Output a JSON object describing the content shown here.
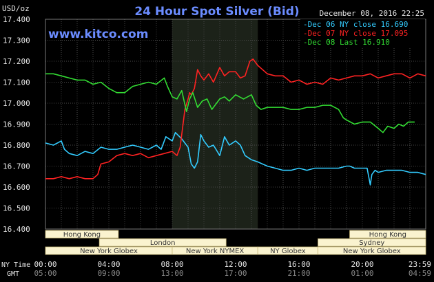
{
  "header": {
    "title": "24 Hour Spot Silver (Bid)",
    "timestamp": "December 08, 2016 22:25",
    "unit": "USD/oz",
    "website": "www.kitco.com"
  },
  "legend": [
    {
      "text": "Dec 06 NY close 16.690",
      "color": "#33ccff"
    },
    {
      "text": "Dec 07 NY close 17.095",
      "color": "#ff2222"
    },
    {
      "text": "Dec 08 Last 16.910",
      "color": "#33dd33"
    }
  ],
  "sessions": [
    {
      "name": "Hong Kong",
      "start": 0.0,
      "end": 4.6,
      "row": 0
    },
    {
      "name": "Hong Kong",
      "start": 19.2,
      "end": 24.0,
      "row": 0
    },
    {
      "name": "London",
      "start": 3.4,
      "end": 11.4,
      "row": 1
    },
    {
      "name": "Sydney",
      "start": 17.2,
      "end": 24.0,
      "row": 1
    },
    {
      "name": "New York Globex",
      "start": 0.0,
      "end": 8.0,
      "row": 2
    },
    {
      "name": "New York NYMEX",
      "start": 8.0,
      "end": 13.4,
      "row": 2
    },
    {
      "name": "NY Globex",
      "start": 13.4,
      "end": 17.2,
      "row": 2
    },
    {
      "name": "New York Globex",
      "start": 17.2,
      "end": 24.0,
      "row": 2
    }
  ],
  "time_axis": {
    "ny_label": "NY Time",
    "gmt_label": "GMT",
    "ny_ticks": [
      "00:00",
      "04:00",
      "08:00",
      "12:00",
      "16:00",
      "20:00",
      "23:59"
    ],
    "gmt_ticks": [
      "05:00",
      "09:00",
      "13:00",
      "17:00",
      "21:00",
      "01:00",
      "04:59"
    ]
  },
  "chart_data": {
    "type": "line",
    "title": "24 Hour Spot Silver (Bid)",
    "xlabel": "",
    "ylabel": "USD/oz",
    "xlim": [
      0,
      24
    ],
    "ylim": [
      16.4,
      17.4
    ],
    "yticks": [
      "17.400",
      "17.300",
      "17.200",
      "17.100",
      "17.000",
      "16.900",
      "16.800",
      "16.700",
      "16.600",
      "16.500",
      "16.400"
    ],
    "highlight_band": [
      8.0,
      13.4
    ],
    "grid": true,
    "series": [
      {
        "name": "Dec 06 NY close 16.690",
        "color": "#33ccff",
        "x": [
          0.0,
          0.5,
          1.0,
          1.2,
          1.5,
          2.0,
          2.5,
          3.0,
          3.5,
          4.0,
          4.5,
          5.0,
          5.5,
          6.0,
          6.5,
          7.0,
          7.3,
          7.6,
          8.0,
          8.2,
          8.6,
          9.0,
          9.2,
          9.4,
          9.6,
          9.8,
          10.0,
          10.3,
          10.6,
          11.0,
          11.3,
          11.6,
          12.0,
          12.3,
          12.6,
          13.0,
          13.4,
          14.0,
          14.5,
          15.0,
          15.5,
          16.0,
          16.5,
          17.0,
          17.5,
          18.0,
          18.5,
          19.0,
          19.2,
          19.5,
          19.7,
          20.0,
          20.3,
          20.5,
          20.6,
          20.8,
          21.0,
          21.5,
          22.0,
          22.5,
          23.0,
          23.5,
          24.0
        ],
        "y": [
          16.81,
          16.8,
          16.82,
          16.78,
          16.76,
          16.75,
          16.77,
          16.76,
          16.79,
          16.78,
          16.78,
          16.79,
          16.8,
          16.79,
          16.78,
          16.8,
          16.78,
          16.84,
          16.82,
          16.86,
          16.83,
          16.79,
          16.71,
          16.69,
          16.72,
          16.85,
          16.82,
          16.79,
          16.8,
          16.75,
          16.84,
          16.8,
          16.82,
          16.8,
          16.75,
          16.73,
          16.72,
          16.7,
          16.69,
          16.68,
          16.68,
          16.69,
          16.68,
          16.69,
          16.69,
          16.69,
          16.69,
          16.7,
          16.7,
          16.69,
          16.69,
          16.69,
          16.69,
          16.61,
          16.66,
          16.68,
          16.67,
          16.68,
          16.68,
          16.68,
          16.67,
          16.67,
          16.66
        ]
      },
      {
        "name": "Dec 07 NY close 17.095",
        "color": "#ff2222",
        "x": [
          0.0,
          0.5,
          1.0,
          1.5,
          2.0,
          2.5,
          3.0,
          3.3,
          3.5,
          4.0,
          4.5,
          5.0,
          5.5,
          6.0,
          6.5,
          7.0,
          7.5,
          8.0,
          8.3,
          8.5,
          8.8,
          9.0,
          9.1,
          9.2,
          9.4,
          9.6,
          9.8,
          10.0,
          10.3,
          10.6,
          11.0,
          11.3,
          11.6,
          12.0,
          12.3,
          12.6,
          12.9,
          13.1,
          13.4,
          13.7,
          14.0,
          14.5,
          15.0,
          15.5,
          16.0,
          16.5,
          17.0,
          17.5,
          18.0,
          18.5,
          19.0,
          19.5,
          20.0,
          20.5,
          21.0,
          21.5,
          22.0,
          22.5,
          23.0,
          23.5,
          24.0
        ],
        "y": [
          16.64,
          16.64,
          16.65,
          16.64,
          16.65,
          16.64,
          16.64,
          16.66,
          16.71,
          16.72,
          16.75,
          16.76,
          16.75,
          16.76,
          16.74,
          16.75,
          16.76,
          16.77,
          16.75,
          16.79,
          16.97,
          17.02,
          17.05,
          17.04,
          17.07,
          17.16,
          17.13,
          17.11,
          17.14,
          17.1,
          17.17,
          17.13,
          17.15,
          17.15,
          17.12,
          17.13,
          17.2,
          17.21,
          17.18,
          17.16,
          17.14,
          17.13,
          17.13,
          17.1,
          17.11,
          17.09,
          17.1,
          17.09,
          17.12,
          17.11,
          17.12,
          17.13,
          17.13,
          17.14,
          17.12,
          17.13,
          17.14,
          17.14,
          17.12,
          17.14,
          17.13
        ]
      },
      {
        "name": "Dec 08 Last 16.910",
        "color": "#33dd33",
        "x": [
          0.0,
          0.5,
          1.0,
          1.5,
          2.0,
          2.5,
          3.0,
          3.5,
          4.0,
          4.5,
          5.0,
          5.5,
          6.0,
          6.5,
          7.0,
          7.5,
          7.7,
          8.0,
          8.3,
          8.6,
          8.9,
          9.1,
          9.3,
          9.6,
          9.9,
          10.2,
          10.5,
          11.0,
          11.3,
          11.6,
          12.0,
          12.5,
          13.0,
          13.3,
          13.6,
          14.0,
          14.5,
          15.0,
          15.5,
          16.0,
          16.5,
          17.0,
          17.5,
          18.0,
          18.5,
          18.8,
          19.0,
          19.5,
          20.0,
          20.5,
          21.0,
          21.3,
          21.6,
          22.0,
          22.3,
          22.6,
          22.9,
          23.3
        ],
        "y": [
          17.14,
          17.14,
          17.13,
          17.12,
          17.11,
          17.11,
          17.09,
          17.1,
          17.07,
          17.05,
          17.05,
          17.08,
          17.09,
          17.1,
          17.09,
          17.12,
          17.08,
          17.03,
          17.02,
          17.06,
          16.96,
          17.02,
          17.05,
          16.98,
          17.01,
          17.02,
          16.97,
          17.02,
          17.03,
          17.01,
          17.04,
          17.02,
          17.04,
          16.99,
          16.97,
          16.98,
          16.98,
          16.98,
          16.97,
          16.97,
          16.98,
          16.98,
          16.99,
          16.99,
          16.97,
          16.93,
          16.92,
          16.9,
          16.91,
          16.91,
          16.88,
          16.86,
          16.89,
          16.88,
          16.9,
          16.89,
          16.91,
          16.91
        ]
      }
    ]
  }
}
